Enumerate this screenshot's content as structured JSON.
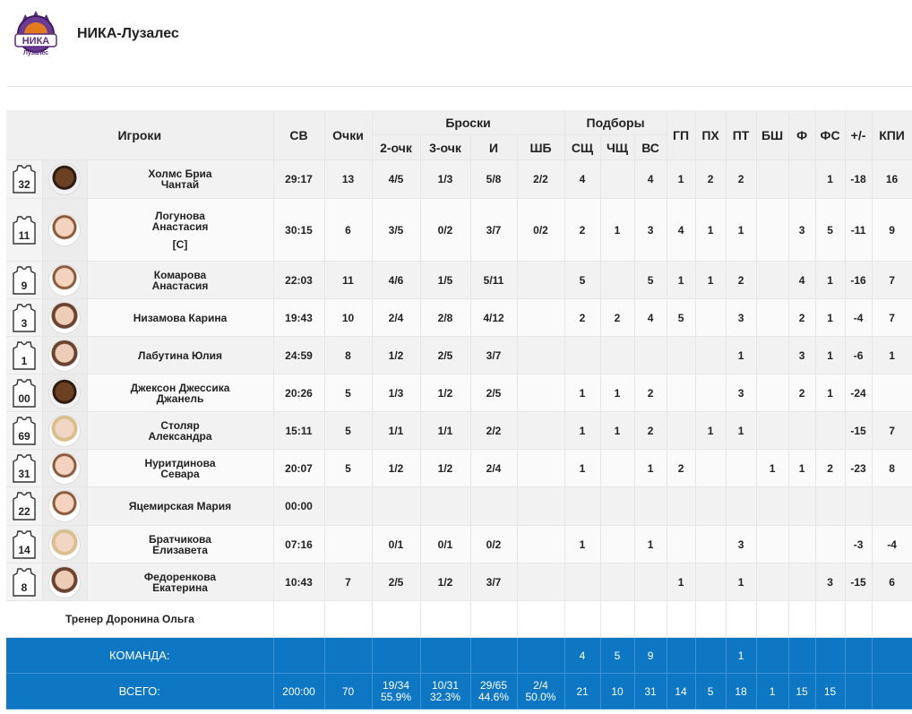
{
  "team": {
    "name": "НИКА-Лузалес",
    "logo_text": "НИКА",
    "logo_subtext": "Лузалес"
  },
  "table": {
    "headers": {
      "players": "Игроки",
      "time": "СВ",
      "points": "Очки",
      "shots": "Броски",
      "two": "2-очк",
      "three": "3-очк",
      "total": "И",
      "ft": "ШБ",
      "rebounds": "Подборы",
      "oreb": "СЩ",
      "dreb": "ЧЩ",
      "reb": "ВС",
      "ast": "ГП",
      "stl": "ПХ",
      "tov": "ПТ",
      "blk": "БШ",
      "fouls": "Ф",
      "fouls_drawn": "ФС",
      "plusminus": "+/-",
      "eff": "КПИ"
    },
    "players": [
      {
        "num": "32",
        "name1": "Холмс Бриа",
        "name2": "Чантай",
        "captain": "",
        "time": "29:17",
        "pts": "13",
        "two": "4/5",
        "three": "1/3",
        "tot": "5/8",
        "ft": "2/2",
        "oreb": "4",
        "dreb": "",
        "reb": "4",
        "ast": "1",
        "stl": "2",
        "tov": "2",
        "blk": "",
        "pf": "",
        "fd": "1",
        "pm": "-18",
        "eff": "16"
      },
      {
        "num": "11",
        "name1": "Логунова",
        "name2": "Анастасия",
        "captain": "[C]",
        "time": "30:15",
        "pts": "6",
        "two": "3/5",
        "three": "0/2",
        "tot": "3/7",
        "ft": "0/2",
        "oreb": "2",
        "dreb": "1",
        "reb": "3",
        "ast": "4",
        "stl": "1",
        "tov": "1",
        "blk": "",
        "pf": "3",
        "fd": "5",
        "pm": "-11",
        "eff": "9"
      },
      {
        "num": "9",
        "name1": "Комарова",
        "name2": "Анастасия",
        "captain": "",
        "time": "22:03",
        "pts": "11",
        "two": "4/6",
        "three": "1/5",
        "tot": "5/11",
        "ft": "",
        "oreb": "5",
        "dreb": "",
        "reb": "5",
        "ast": "1",
        "stl": "1",
        "tov": "2",
        "blk": "",
        "pf": "4",
        "fd": "1",
        "pm": "-16",
        "eff": "7"
      },
      {
        "num": "3",
        "name1": "Низамова Карина",
        "name2": "",
        "captain": "",
        "time": "19:43",
        "pts": "10",
        "two": "2/4",
        "three": "2/8",
        "tot": "4/12",
        "ft": "",
        "oreb": "2",
        "dreb": "2",
        "reb": "4",
        "ast": "5",
        "stl": "",
        "tov": "3",
        "blk": "",
        "pf": "2",
        "fd": "1",
        "pm": "-4",
        "eff": "7"
      },
      {
        "num": "1",
        "name1": "Лабутина Юлия",
        "name2": "",
        "captain": "",
        "time": "24:59",
        "pts": "8",
        "two": "1/2",
        "three": "2/5",
        "tot": "3/7",
        "ft": "",
        "oreb": "",
        "dreb": "",
        "reb": "",
        "ast": "",
        "stl": "",
        "tov": "1",
        "blk": "",
        "pf": "3",
        "fd": "1",
        "pm": "-6",
        "eff": "1"
      },
      {
        "num": "00",
        "name1": "Джексон Джессика",
        "name2": "Джанель",
        "captain": "",
        "time": "20:26",
        "pts": "5",
        "two": "1/3",
        "three": "1/2",
        "tot": "2/5",
        "ft": "",
        "oreb": "1",
        "dreb": "1",
        "reb": "2",
        "ast": "",
        "stl": "",
        "tov": "3",
        "blk": "",
        "pf": "2",
        "fd": "1",
        "pm": "-24",
        "eff": ""
      },
      {
        "num": "69",
        "name1": "Столяр",
        "name2": "Александра",
        "captain": "",
        "time": "15:11",
        "pts": "5",
        "two": "1/1",
        "three": "1/1",
        "tot": "2/2",
        "ft": "",
        "oreb": "1",
        "dreb": "1",
        "reb": "2",
        "ast": "",
        "stl": "1",
        "tov": "1",
        "blk": "",
        "pf": "",
        "fd": "",
        "pm": "-15",
        "eff": "7"
      },
      {
        "num": "31",
        "name1": "Нуритдинова",
        "name2": "Севара",
        "captain": "",
        "time": "20:07",
        "pts": "5",
        "two": "1/2",
        "three": "1/2",
        "tot": "2/4",
        "ft": "",
        "oreb": "1",
        "dreb": "",
        "reb": "1",
        "ast": "2",
        "stl": "",
        "tov": "",
        "blk": "1",
        "pf": "1",
        "fd": "2",
        "pm": "-23",
        "eff": "8"
      },
      {
        "num": "22",
        "name1": "Яцемирская Мария",
        "name2": "",
        "captain": "",
        "time": "00:00",
        "pts": "",
        "two": "",
        "three": "",
        "tot": "",
        "ft": "",
        "oreb": "",
        "dreb": "",
        "reb": "",
        "ast": "",
        "stl": "",
        "tov": "",
        "blk": "",
        "pf": "",
        "fd": "",
        "pm": "",
        "eff": ""
      },
      {
        "num": "14",
        "name1": "Братчикова",
        "name2": "Елизавета",
        "captain": "",
        "time": "07:16",
        "pts": "",
        "two": "0/1",
        "three": "0/1",
        "tot": "0/2",
        "ft": "",
        "oreb": "1",
        "dreb": "",
        "reb": "1",
        "ast": "",
        "stl": "",
        "tov": "3",
        "blk": "",
        "pf": "",
        "fd": "",
        "pm": "-3",
        "eff": "-4"
      },
      {
        "num": "8",
        "name1": "Федоренкова",
        "name2": "Екатерина",
        "captain": "",
        "time": "10:43",
        "pts": "7",
        "two": "2/5",
        "three": "1/2",
        "tot": "3/7",
        "ft": "",
        "oreb": "",
        "dreb": "",
        "reb": "",
        "ast": "1",
        "stl": "",
        "tov": "1",
        "blk": "",
        "pf": "",
        "fd": "3",
        "pm": "-15",
        "eff": "6"
      }
    ],
    "coach": "Тренер Доронина Ольга",
    "team_row": {
      "label": "КОМАНДА:",
      "oreb": "4",
      "dreb": "5",
      "reb": "9",
      "tov": "1"
    },
    "total_row": {
      "label": "ВСЕГО:",
      "time": "200:00",
      "pts": "70",
      "two": "19/34",
      "two_pct": "55.9%",
      "three": "10/31",
      "three_pct": "32.3%",
      "tot": "29/65",
      "tot_pct": "44.6%",
      "ft": "2/4",
      "ft_pct": "50.0%",
      "oreb": "21",
      "dreb": "10",
      "reb": "31",
      "ast": "14",
      "stl": "5",
      "tov": "18",
      "blk": "1",
      "pf": "15",
      "fd": "15"
    }
  },
  "colors": {
    "accent": "#0d77c4",
    "header_bg": "#f0f0f0"
  }
}
